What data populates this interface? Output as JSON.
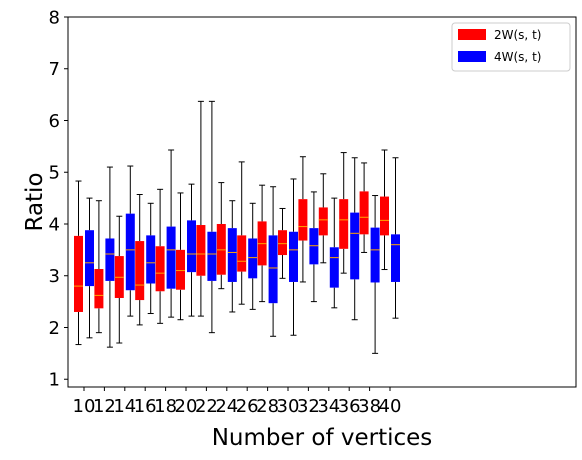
{
  "chart_data": {
    "type": "box",
    "xlabel": "Number of vertices",
    "ylabel": "Ratio",
    "ylim": [
      0.85,
      8.0
    ],
    "yticks": [
      1,
      2,
      3,
      4,
      5,
      6,
      7,
      8
    ],
    "categories": [
      "10",
      "12",
      "14",
      "16",
      "18",
      "20",
      "22",
      "24",
      "26",
      "28",
      "30",
      "32",
      "34",
      "36",
      "38",
      "40"
    ],
    "legend_position": "top-right",
    "grid": false,
    "median_color": "#ffa500",
    "series": [
      {
        "name": "2W(s, t)",
        "color": "#ff0000",
        "boxes": [
          {
            "whislo": 1.67,
            "q1": 2.3,
            "med": 2.8,
            "q3": 3.77,
            "whishi": 4.83
          },
          {
            "whislo": 1.9,
            "q1": 2.37,
            "med": 2.62,
            "q3": 3.13,
            "whishi": 4.45
          },
          {
            "whislo": 1.7,
            "q1": 2.57,
            "med": 2.97,
            "q3": 3.38,
            "whishi": 4.15
          },
          {
            "whislo": 2.05,
            "q1": 2.53,
            "med": 2.82,
            "q3": 3.67,
            "whishi": 4.57
          },
          {
            "whislo": 2.08,
            "q1": 2.7,
            "med": 3.05,
            "q3": 3.57,
            "whishi": 4.67
          },
          {
            "whislo": 2.15,
            "q1": 2.73,
            "med": 3.1,
            "q3": 3.5,
            "whishi": 4.6
          },
          {
            "whislo": 2.22,
            "q1": 3.0,
            "med": 3.42,
            "q3": 3.98,
            "whishi": 6.37
          },
          {
            "whislo": 2.75,
            "q1": 3.02,
            "med": 3.5,
            "q3": 4.0,
            "whishi": 4.8
          },
          {
            "whislo": 2.45,
            "q1": 3.08,
            "med": 3.28,
            "q3": 3.78,
            "whishi": 5.2
          },
          {
            "whislo": 2.5,
            "q1": 3.2,
            "med": 3.62,
            "q3": 4.05,
            "whishi": 4.75
          },
          {
            "whislo": 2.95,
            "q1": 3.4,
            "med": 3.62,
            "q3": 3.88,
            "whishi": 4.3
          },
          {
            "whislo": 2.88,
            "q1": 3.68,
            "med": 3.95,
            "q3": 4.48,
            "whishi": 5.3
          },
          {
            "whislo": 3.25,
            "q1": 3.78,
            "med": 4.08,
            "q3": 4.32,
            "whishi": 4.97
          },
          {
            "whislo": 3.05,
            "q1": 3.52,
            "med": 4.08,
            "q3": 4.48,
            "whishi": 5.38
          },
          {
            "whislo": 3.45,
            "q1": 3.8,
            "med": 4.13,
            "q3": 4.63,
            "whishi": 5.18
          },
          {
            "whislo": 3.12,
            "q1": 3.78,
            "med": 4.07,
            "q3": 4.53,
            "whishi": 5.43
          }
        ]
      },
      {
        "name": "4W(s, t)",
        "color": "#0000ff",
        "boxes": [
          {
            "whislo": 1.8,
            "q1": 2.8,
            "med": 3.25,
            "q3": 3.88,
            "whishi": 4.5
          },
          {
            "whislo": 1.62,
            "q1": 2.9,
            "med": 3.42,
            "q3": 3.72,
            "whishi": 5.1
          },
          {
            "whislo": 2.22,
            "q1": 2.72,
            "med": 3.5,
            "q3": 4.2,
            "whishi": 5.12
          },
          {
            "whislo": 2.27,
            "q1": 2.85,
            "med": 3.25,
            "q3": 3.78,
            "whishi": 4.4
          },
          {
            "whislo": 2.2,
            "q1": 2.75,
            "med": 3.5,
            "q3": 3.95,
            "whishi": 5.43
          },
          {
            "whislo": 2.22,
            "q1": 3.07,
            "med": 3.42,
            "q3": 4.07,
            "whishi": 4.77
          },
          {
            "whislo": 1.9,
            "q1": 2.9,
            "med": 3.42,
            "q3": 3.85,
            "whishi": 6.37
          },
          {
            "whislo": 2.3,
            "q1": 2.88,
            "med": 3.45,
            "q3": 3.92,
            "whishi": 4.45
          },
          {
            "whislo": 2.35,
            "q1": 2.95,
            "med": 3.35,
            "q3": 3.72,
            "whishi": 4.4
          },
          {
            "whislo": 1.83,
            "q1": 2.47,
            "med": 3.15,
            "q3": 3.78,
            "whishi": 4.72
          },
          {
            "whislo": 1.85,
            "q1": 2.88,
            "med": 3.5,
            "q3": 3.85,
            "whishi": 4.87
          },
          {
            "whislo": 2.5,
            "q1": 3.22,
            "med": 3.58,
            "q3": 3.92,
            "whishi": 4.62
          },
          {
            "whislo": 2.38,
            "q1": 2.77,
            "med": 3.35,
            "q3": 3.55,
            "whishi": 4.5
          },
          {
            "whislo": 2.15,
            "q1": 2.93,
            "med": 3.82,
            "q3": 4.22,
            "whishi": 5.28
          },
          {
            "whislo": 1.5,
            "q1": 2.87,
            "med": 3.5,
            "q3": 3.93,
            "whishi": 4.55
          },
          {
            "whislo": 2.18,
            "q1": 2.88,
            "med": 3.6,
            "q3": 3.8,
            "whishi": 5.28
          }
        ]
      }
    ]
  }
}
